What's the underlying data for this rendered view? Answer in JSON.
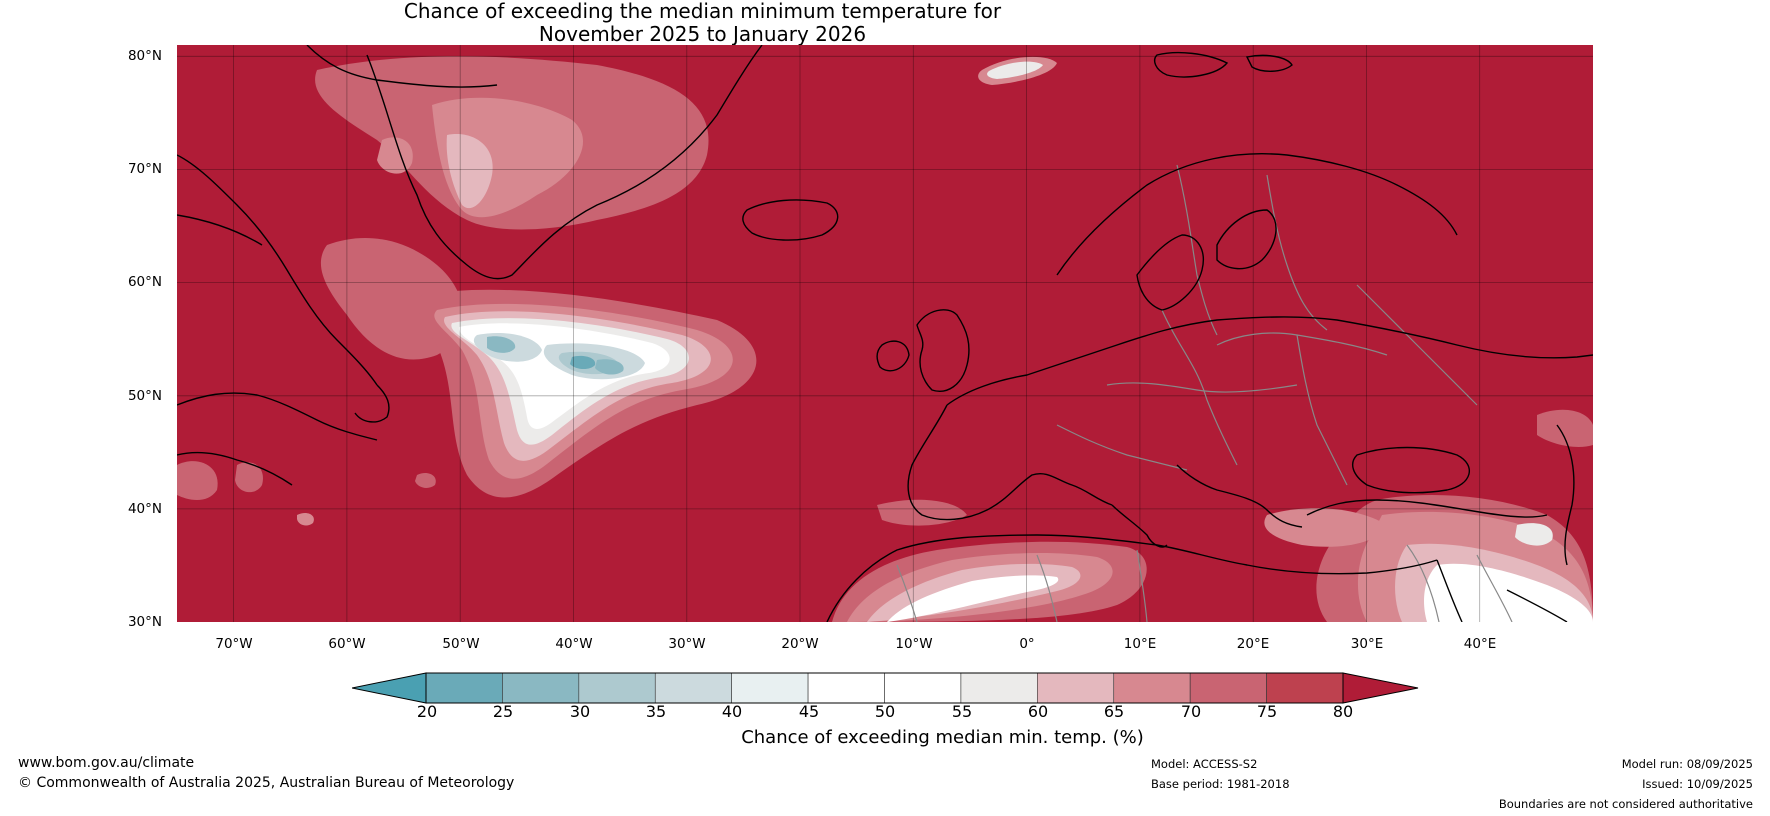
{
  "title": {
    "line1": "Chance of exceeding the median minimum temperature for",
    "line2": "November 2025 to January 2026"
  },
  "map": {
    "lat_labels": [
      "80°N",
      "70°N",
      "60°N",
      "50°N",
      "40°N",
      "30°N"
    ],
    "lon_labels": [
      "70°W",
      "60°W",
      "50°W",
      "40°W",
      "30°W",
      "20°W",
      "10°W",
      "0°",
      "10°E",
      "20°E",
      "30°E",
      "40°E"
    ],
    "lat_range": [
      30,
      81
    ],
    "lon_range": [
      -75,
      50
    ],
    "colors": {
      "above_80": "#b01c37",
      "75_80": "#be414f",
      "70_75": "#c96472",
      "65_70": "#d78890",
      "60_65": "#e4b8be",
      "55_60": "#ecebea",
      "45_55": "#ffffff",
      "40_45": "#e8f0f1",
      "35_40": "#ccdade",
      "30_35": "#adc9cf",
      "25_30": "#8ab8c2",
      "20_25": "#6aaab8",
      "below_20": "#4aa0b2",
      "coastline": "#000000",
      "borders": "#888888"
    }
  },
  "colorbar": {
    "ticks": [
      "20",
      "25",
      "30",
      "35",
      "40",
      "45",
      "50",
      "55",
      "60",
      "65",
      "70",
      "75",
      "80"
    ],
    "label": "Chance of exceeding median min. temp. (%)",
    "colors": [
      "#4aa0b2",
      "#6aaab8",
      "#8ab8c2",
      "#adc9cf",
      "#ccdade",
      "#e8f0f1",
      "#ffffff",
      "#ffffff",
      "#ecebea",
      "#e4b8be",
      "#d78890",
      "#c96472",
      "#be414f",
      "#b01c37"
    ]
  },
  "footer": {
    "website": "www.bom.gov.au/climate",
    "copyright": "© Commonwealth of Australia 2025, Australian Bureau of Meteorology",
    "model": "Model: ACCESS-S2",
    "base_period": "Base period: 1981-2018",
    "model_run": "Model run: 08/09/2025",
    "issued": "Issued: 10/09/2025",
    "disclaimer": "Boundaries are not considered authoritative"
  }
}
